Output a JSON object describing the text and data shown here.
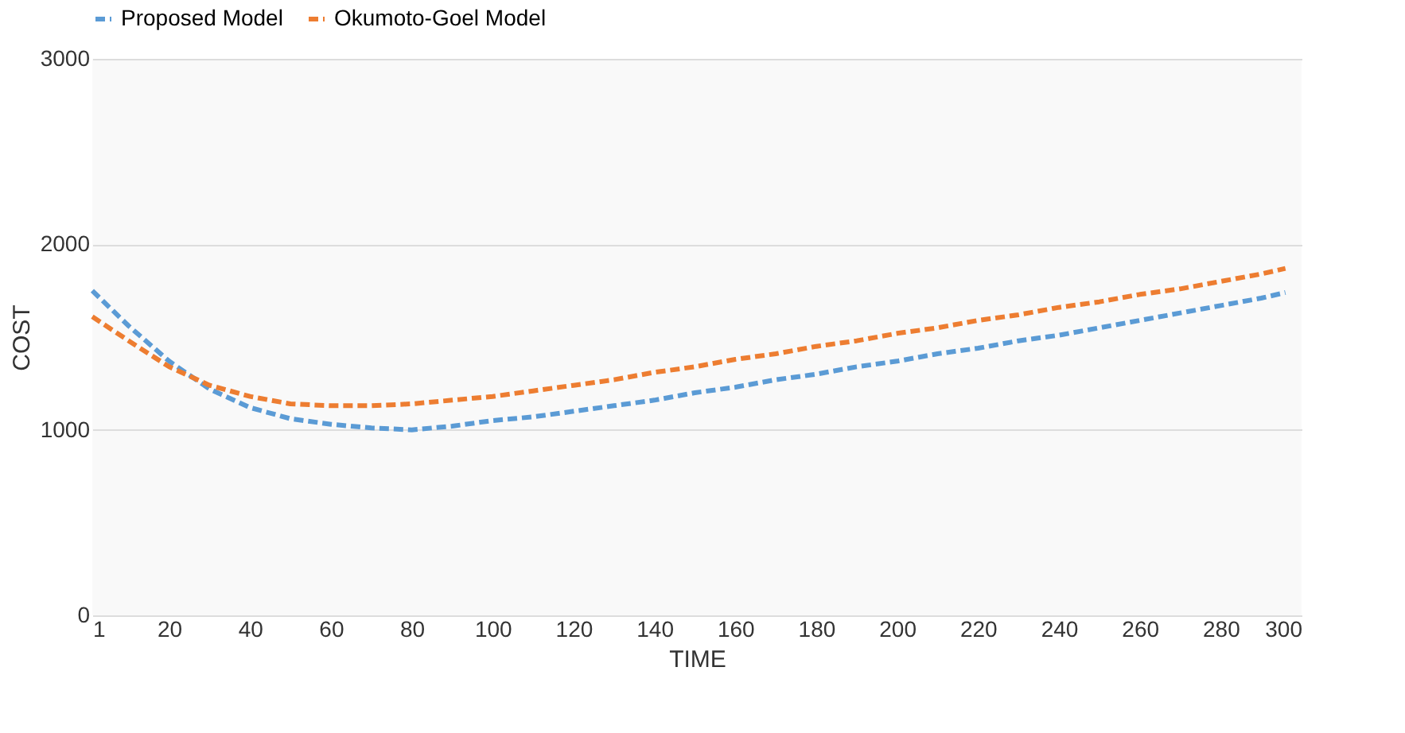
{
  "chart_data": {
    "type": "line",
    "xlabel": "TIME",
    "ylabel": "COST",
    "x": [
      1,
      10,
      20,
      30,
      40,
      50,
      60,
      70,
      80,
      90,
      100,
      110,
      120,
      130,
      140,
      150,
      160,
      170,
      180,
      190,
      200,
      210,
      220,
      230,
      240,
      250,
      260,
      270,
      280,
      290,
      296
    ],
    "series": [
      {
        "name": "Proposed Model",
        "color": "#5b9bd5",
        "values": [
          1750,
          1560,
          1370,
          1220,
          1120,
          1060,
          1030,
          1010,
          1000,
          1020,
          1050,
          1070,
          1100,
          1130,
          1160,
          1200,
          1230,
          1270,
          1300,
          1340,
          1370,
          1410,
          1440,
          1480,
          1510,
          1550,
          1590,
          1630,
          1670,
          1710,
          1740
        ]
      },
      {
        "name": "Okumoto-Goel Model",
        "color": "#ed7d31",
        "values": [
          1610,
          1480,
          1340,
          1240,
          1180,
          1140,
          1130,
          1130,
          1140,
          1160,
          1180,
          1210,
          1240,
          1270,
          1310,
          1340,
          1380,
          1410,
          1450,
          1480,
          1520,
          1550,
          1590,
          1620,
          1660,
          1690,
          1730,
          1760,
          1800,
          1840,
          1870
        ]
      }
    ],
    "xlim": [
      1,
      300
    ],
    "xticks": [
      1,
      20,
      40,
      60,
      80,
      100,
      120,
      140,
      160,
      180,
      200,
      220,
      240,
      260,
      280,
      300
    ],
    "ylim": [
      0,
      3000
    ],
    "yticks": [
      0,
      1000,
      2000,
      3000
    ],
    "grid": "y",
    "legend": "top",
    "line_style": "dashed"
  }
}
